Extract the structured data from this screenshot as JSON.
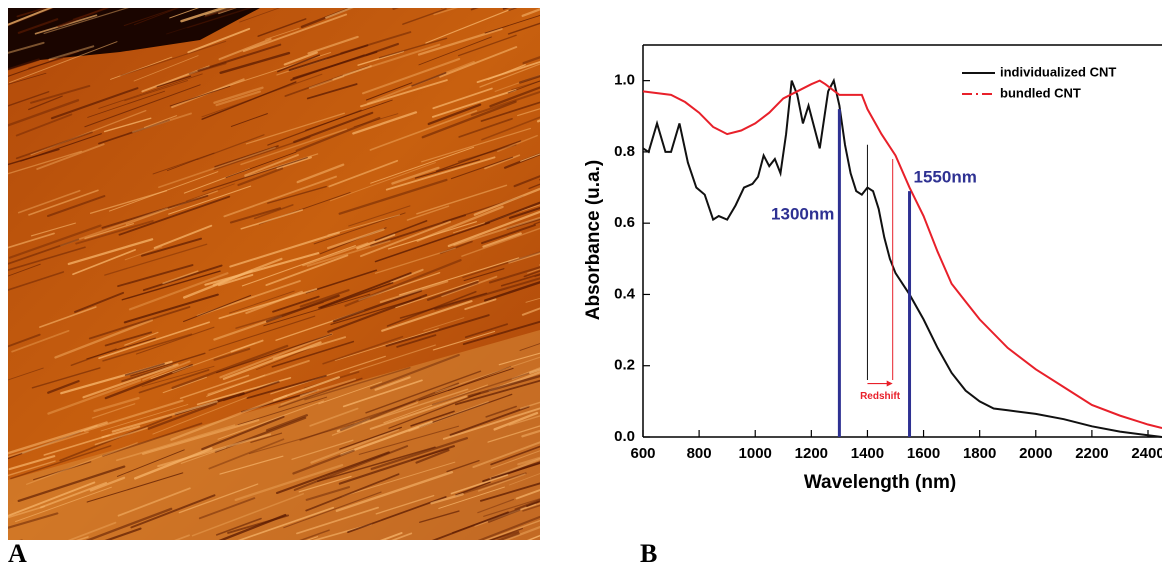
{
  "panel_labels": [
    "A",
    "B"
  ],
  "chart_data": {
    "type": "line",
    "xlabel": "Wavelength (nm)",
    "ylabel": "Absorbance (u.a.)",
    "xlim": [
      600,
      2450
    ],
    "ylim": [
      0,
      1.1
    ],
    "xticks": [
      600,
      800,
      1000,
      1200,
      1400,
      1600,
      1800,
      2000,
      2200,
      2400
    ],
    "yticks": [
      {
        "value": 0,
        "label": "0.0"
      },
      0.2,
      0.4,
      0.6,
      0.8,
      {
        "value": 1,
        "label": "1.0"
      }
    ],
    "legend": "upper right",
    "series": [
      {
        "name": "individualized CNT",
        "color": "#111111",
        "dash": "solid",
        "x": [
          600,
          620,
          650,
          680,
          700,
          730,
          760,
          790,
          820,
          850,
          870,
          900,
          930,
          960,
          990,
          1010,
          1030,
          1050,
          1070,
          1090,
          1110,
          1130,
          1150,
          1170,
          1190,
          1210,
          1230,
          1260,
          1280,
          1300,
          1320,
          1340,
          1360,
          1380,
          1400,
          1420,
          1440,
          1460,
          1480,
          1500,
          1550,
          1600,
          1650,
          1700,
          1750,
          1800,
          1850,
          1900,
          2000,
          2100,
          2200,
          2300,
          2400,
          2450
        ],
        "values": [
          0.81,
          0.8,
          0.88,
          0.8,
          0.8,
          0.88,
          0.77,
          0.7,
          0.68,
          0.61,
          0.62,
          0.61,
          0.65,
          0.7,
          0.71,
          0.73,
          0.79,
          0.76,
          0.78,
          0.74,
          0.85,
          1.0,
          0.96,
          0.88,
          0.93,
          0.87,
          0.81,
          0.97,
          1.0,
          0.93,
          0.82,
          0.74,
          0.69,
          0.68,
          0.7,
          0.69,
          0.64,
          0.56,
          0.5,
          0.46,
          0.4,
          0.33,
          0.25,
          0.18,
          0.13,
          0.1,
          0.08,
          0.075,
          0.065,
          0.05,
          0.03,
          0.015,
          0.005,
          0.0
        ]
      },
      {
        "name": "bundled CNT",
        "color": "#e8202a",
        "dash": "dashdot",
        "x": [
          600,
          700,
          750,
          800,
          850,
          900,
          950,
          1000,
          1050,
          1100,
          1150,
          1200,
          1230,
          1250,
          1300,
          1350,
          1380,
          1400,
          1450,
          1500,
          1550,
          1600,
          1650,
          1700,
          1750,
          1800,
          1900,
          2000,
          2100,
          2200,
          2300,
          2400,
          2450
        ],
        "values": [
          0.97,
          0.96,
          0.94,
          0.91,
          0.87,
          0.85,
          0.86,
          0.88,
          0.91,
          0.95,
          0.97,
          0.99,
          1.0,
          0.99,
          0.96,
          0.96,
          0.96,
          0.92,
          0.85,
          0.79,
          0.7,
          0.62,
          0.52,
          0.43,
          0.38,
          0.33,
          0.25,
          0.19,
          0.14,
          0.09,
          0.06,
          0.035,
          0.025
        ]
      }
    ],
    "markers": [
      {
        "x": 1300,
        "y": [
          0,
          0.92
        ],
        "color": "#2e3192",
        "label": "1300nm"
      },
      {
        "x": 1550,
        "y": [
          0,
          0.69
        ],
        "color": "#2e3192",
        "label": "1550nm"
      },
      {
        "x": 1400,
        "y": [
          0.16,
          0.82
        ],
        "color": "#111111"
      },
      {
        "x": 1490,
        "y": [
          0.16,
          0.78
        ],
        "color": "#e8202a"
      }
    ],
    "arrow": {
      "x": [
        1400,
        1490
      ],
      "y": 0.15,
      "color": "#e8202a",
      "label": "Redshift"
    }
  }
}
